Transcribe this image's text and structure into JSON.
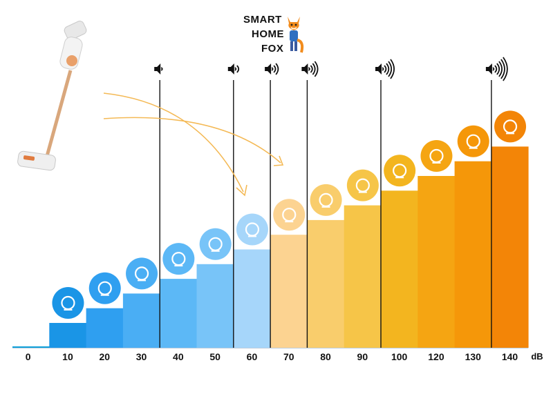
{
  "logo": {
    "line1": "SMART",
    "line2": "HOME",
    "line3": "FOX"
  },
  "chart_data": {
    "type": "bar",
    "categories": [
      "0",
      "10",
      "20",
      "30",
      "40",
      "50",
      "60",
      "70",
      "80",
      "90",
      "100",
      "120",
      "130",
      "140"
    ],
    "values": [
      0,
      10,
      20,
      30,
      40,
      50,
      60,
      70,
      80,
      90,
      100,
      120,
      130,
      140
    ],
    "unit_label": "dB",
    "title": "",
    "xlabel": "",
    "ylabel": "",
    "grid": false,
    "colors": [
      "#0ea0d8",
      "#1a95e6",
      "#2f9ff0",
      "#4aaef4",
      "#5cb8f6",
      "#78c4f8",
      "#a6d6fa",
      "#fcd391",
      "#f9cd6c",
      "#f6c548",
      "#f3b51f",
      "#f5a512",
      "#f59709",
      "#f38507"
    ],
    "icons": [
      "",
      "lungs-icon",
      "leaves-icon",
      "whisper-icon",
      "fridge-icon",
      "rain-icon",
      "speech-bubbles-icon",
      "washing-machine-icon",
      "piano-icon",
      "hair-dryer-icon",
      "blender-icon",
      "trombone-icon",
      "police-car-icon",
      "fireworks-icon"
    ],
    "volume_markers": [
      {
        "after_category": "30",
        "level": 0
      },
      {
        "after_category": "50",
        "level": 1
      },
      {
        "after_category": "60",
        "level": 2
      },
      {
        "after_category": "70",
        "level": 3
      },
      {
        "after_category": "90",
        "level": 4
      },
      {
        "after_category": "130",
        "level": 5
      }
    ]
  }
}
